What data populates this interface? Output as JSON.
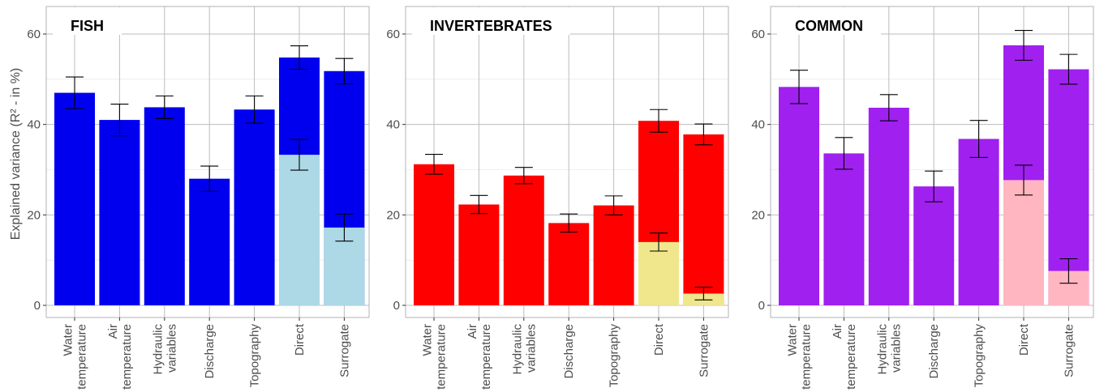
{
  "chart_data": {
    "type": "bar",
    "ylabel": "Explained variance (R² - in %)",
    "ylim": [
      0,
      60
    ],
    "y_ticks": [
      "0",
      "20",
      "40",
      "60"
    ],
    "grid": true,
    "categories": [
      [
        "Water",
        "temperature"
      ],
      [
        "Air",
        "temperature"
      ],
      [
        "Hydraulic",
        "variables"
      ],
      [
        "Discharge"
      ],
      [
        "Topography"
      ],
      [
        "Direct"
      ],
      [
        "Surrogate"
      ]
    ],
    "panels": [
      {
        "title": "FISH",
        "colors": {
          "main": "#0000EE",
          "light": "#ADD8E6"
        },
        "values": [
          47,
          41,
          43.8,
          28,
          43.3,
          54.8,
          51.8
        ],
        "errors": [
          3.5,
          3.5,
          2.5,
          2.8,
          3.0,
          2.6,
          2.8
        ],
        "inner_values": [
          null,
          null,
          null,
          null,
          null,
          33.3,
          17.2
        ],
        "inner_errors": [
          null,
          null,
          null,
          null,
          null,
          3.4,
          3.0
        ]
      },
      {
        "title": "INVERTEBRATES",
        "colors": {
          "main": "#FF0000",
          "light": "#F0E68C"
        },
        "values": [
          31.2,
          22.3,
          28.7,
          18.2,
          22.1,
          40.8,
          37.8
        ],
        "errors": [
          2.2,
          2.0,
          1.8,
          2.0,
          2.1,
          2.5,
          2.3
        ],
        "inner_values": [
          null,
          null,
          null,
          null,
          null,
          14,
          2.6
        ],
        "inner_errors": [
          null,
          null,
          null,
          null,
          null,
          2.0,
          1.4
        ]
      },
      {
        "title": "COMMON",
        "colors": {
          "main": "#A020F0",
          "light": "#FFB6C1"
        },
        "values": [
          48.3,
          33.6,
          43.7,
          26.3,
          36.8,
          57.5,
          52.2
        ],
        "errors": [
          3.7,
          3.5,
          2.9,
          3.4,
          4.1,
          3.3,
          3.3
        ],
        "inner_values": [
          null,
          null,
          null,
          null,
          null,
          27.7,
          7.6
        ],
        "inner_errors": [
          null,
          null,
          null,
          null,
          null,
          3.3,
          2.7
        ]
      }
    ]
  }
}
